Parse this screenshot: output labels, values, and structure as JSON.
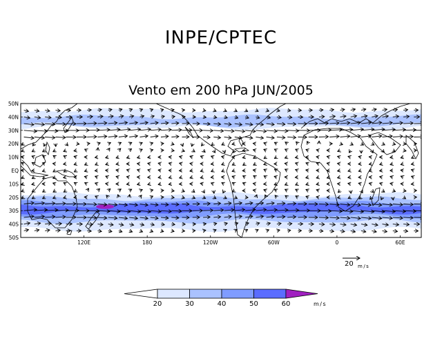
{
  "header": {
    "agency": "INPE/CPTEC",
    "title": "Vento em 200 hPa JUN/2005"
  },
  "map": {
    "lat_labels": [
      "50N",
      "40N",
      "30N",
      "20N",
      "10N",
      "EQ",
      "10S",
      "20S",
      "30S",
      "40S",
      "50S"
    ],
    "lon_labels": [
      "120E",
      "180",
      "120W",
      "60W",
      "0",
      "60E"
    ],
    "lat_range": [
      -50,
      50
    ],
    "lon_range": [
      60,
      440
    ],
    "shading_bands": [
      {
        "lat_from": 45,
        "lat_to": 32,
        "speed": 25,
        "color": "#dde8ff"
      },
      {
        "lat_from": 40,
        "lat_to": 34,
        "speed": 35,
        "color": "#aac2ff"
      },
      {
        "lat_from": -18,
        "lat_to": -44,
        "speed": 25,
        "color": "#dde8ff"
      },
      {
        "lat_from": -21,
        "lat_to": -38,
        "speed": 35,
        "color": "#aac2ff"
      },
      {
        "lat_from": -24,
        "lat_to": -34,
        "speed": 45,
        "color": "#7f9cff"
      },
      {
        "lat_from": -26,
        "lat_to": -31,
        "speed": 55,
        "color": "#5a6cff"
      }
    ],
    "jet_core": {
      "lon": 140,
      "lat": -27,
      "speed": 62,
      "color": "#a020c0"
    }
  },
  "vector_key": {
    "value": "20",
    "unit": "m/s"
  },
  "colorbar": {
    "unit": "m/s",
    "ticks": [
      "20",
      "30",
      "40",
      "50",
      "60"
    ],
    "colors": [
      "#ffffff",
      "#dde8ff",
      "#aac2ff",
      "#7f9cff",
      "#5a6cff",
      "#4040f0",
      "#a020c0"
    ]
  }
}
